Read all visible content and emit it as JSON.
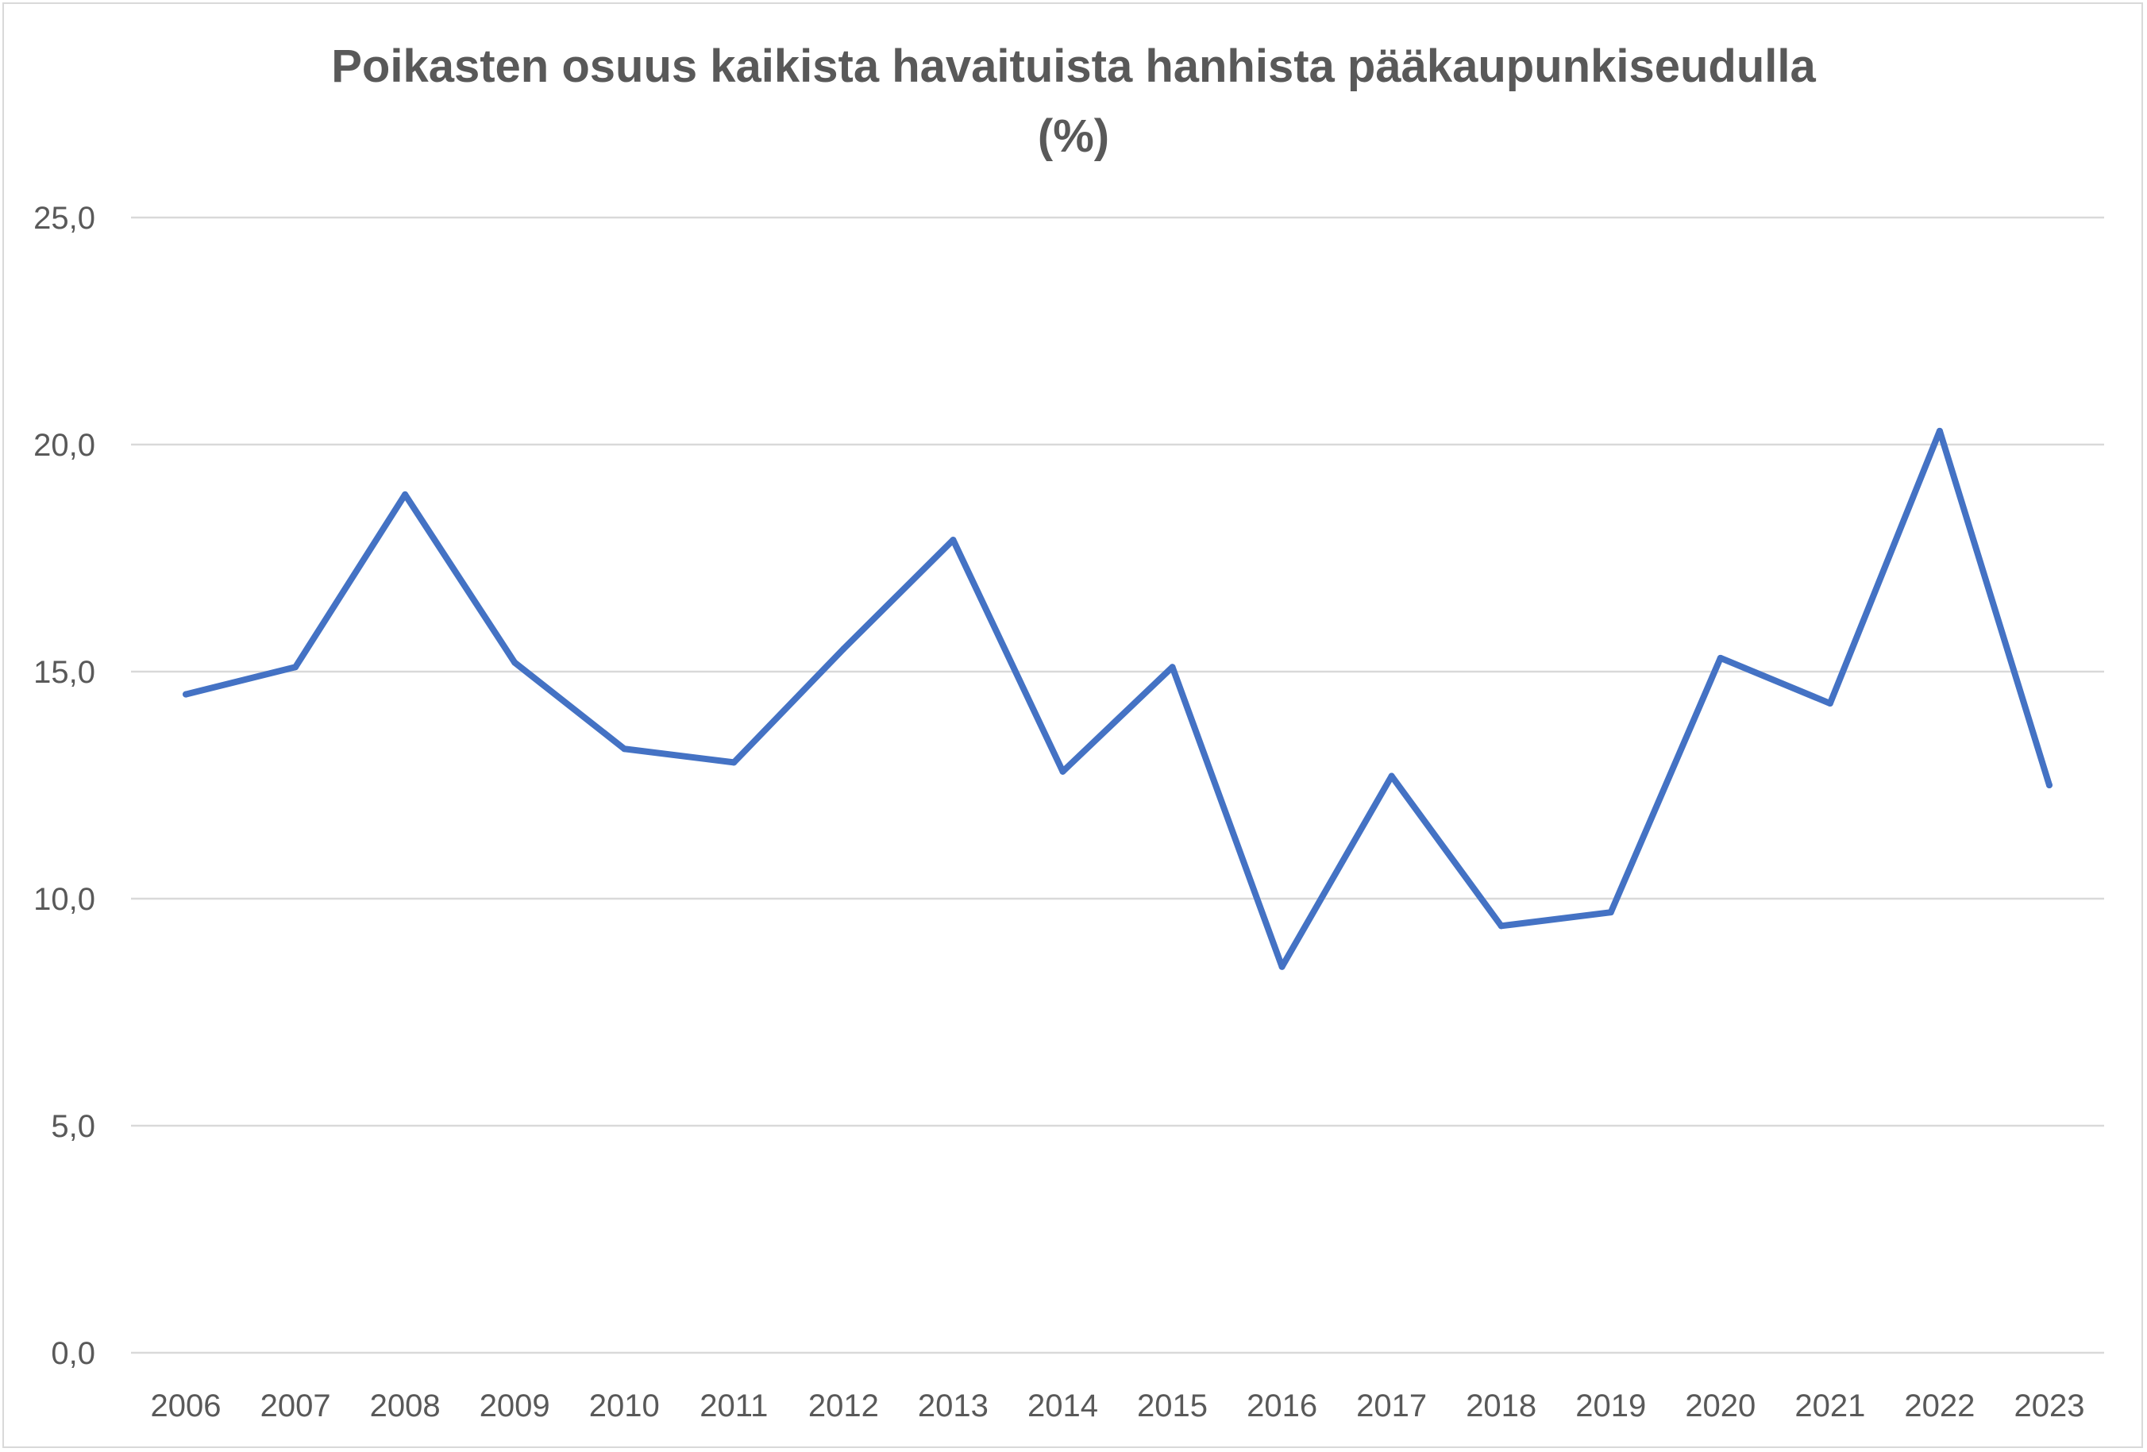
{
  "chart_data": {
    "type": "line",
    "title_lines": [
      "Poikasten osuus kaikista havaituista hanhista pääkaupunkiseudulla",
      "(%)"
    ],
    "xlabel": "",
    "ylabel": "",
    "categories": [
      "2006",
      "2007",
      "2008",
      "2009",
      "2010",
      "2011",
      "2012",
      "2013",
      "2014",
      "2015",
      "2016",
      "2017",
      "2018",
      "2019",
      "2020",
      "2021",
      "2022",
      "2023"
    ],
    "series": [
      {
        "values": [
          14.5,
          15.1,
          18.9,
          15.2,
          13.3,
          13.0,
          15.5,
          17.9,
          12.8,
          15.1,
          8.5,
          12.7,
          9.4,
          9.7,
          15.3,
          14.3,
          20.3,
          12.5
        ],
        "color": "#4472c4"
      }
    ],
    "ylim": [
      0,
      25
    ],
    "yticks": [
      0,
      5,
      10,
      15,
      20,
      25
    ],
    "ytick_labels": [
      "0,0",
      "5,0",
      "10,0",
      "15,0",
      "20,0",
      "25,0"
    ],
    "grid": true,
    "legend": "none"
  }
}
